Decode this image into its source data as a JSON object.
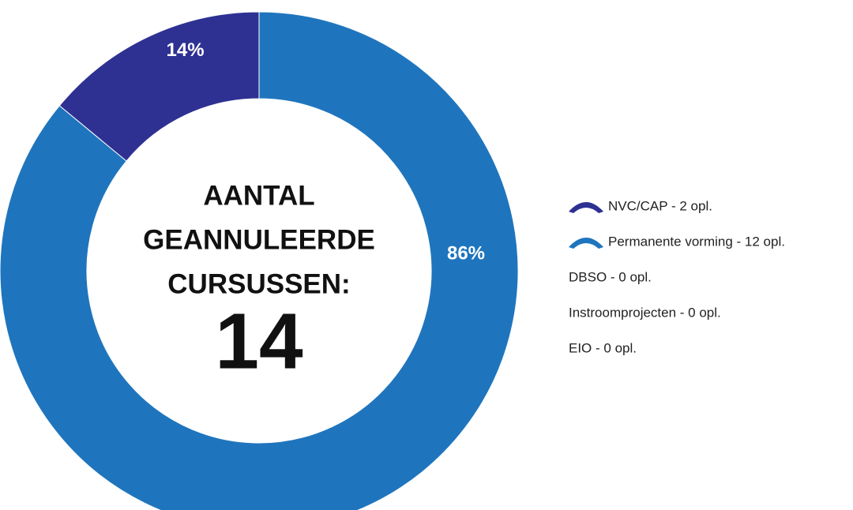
{
  "chart_data": {
    "type": "doughnut",
    "categories": [
      "NVC/CAP - 2 opl.",
      "Permanente vorming - 12 opl.",
      "DBSO - 0 opl.",
      "Instroomprojecten - 0 opl.",
      "EIO - 0 opl."
    ],
    "values": [
      14,
      86,
      0,
      0,
      0
    ],
    "value_labels": [
      "14%",
      "86%",
      null,
      null,
      null
    ],
    "colors": [
      "#2e3192",
      "#1f75bd",
      "#2e3192",
      "#1f75bd",
      "#2e3192"
    ],
    "center_title": [
      "AANTAL",
      "GEANNULEERDE",
      "CURSUSSEN:"
    ],
    "center_value": 14,
    "legend": "right"
  }
}
